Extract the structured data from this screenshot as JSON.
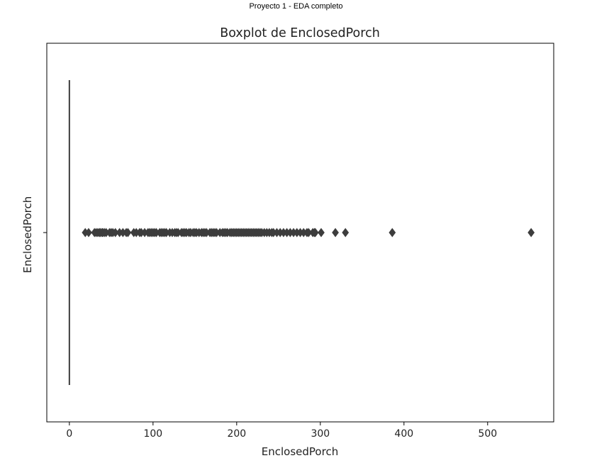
{
  "page": {
    "header": "Proyecto 1 - EDA completo"
  },
  "chart_data": {
    "type": "boxplot",
    "orientation": "horizontal",
    "title": "Boxplot de EnclosedPorch",
    "xlabel": "EnclosedPorch",
    "ylabel": "EnclosedPorch",
    "xlim": [
      -27,
      579
    ],
    "xticks": [
      0,
      100,
      200,
      300,
      400,
      500
    ],
    "grid": false,
    "box": {
      "min": 0,
      "q1": 0,
      "median": 0,
      "q3": 0,
      "max": 0
    },
    "outliers": [
      19,
      23,
      30,
      32,
      34,
      36,
      37,
      39,
      40,
      42,
      44,
      48,
      50,
      52,
      55,
      60,
      64,
      68,
      70,
      77,
      80,
      84,
      86,
      90,
      94,
      96,
      98,
      100,
      102,
      104,
      108,
      110,
      112,
      114,
      116,
      120,
      123,
      126,
      128,
      130,
      134,
      136,
      138,
      140,
      143,
      145,
      148,
      150,
      152,
      155,
      158,
      160,
      162,
      164,
      168,
      170,
      172,
      174,
      176,
      180,
      183,
      185,
      187,
      189,
      192,
      194,
      196,
      198,
      200,
      202,
      204,
      206,
      208,
      210,
      212,
      214,
      216,
      218,
      220,
      222,
      224,
      226,
      228,
      230,
      233,
      236,
      239,
      242,
      244,
      248,
      252,
      256,
      260,
      264,
      268,
      272,
      276,
      280,
      284,
      286,
      291,
      293,
      294,
      301,
      318,
      330,
      386,
      552
    ],
    "colors": {
      "marker": "#3d3d3d",
      "whisker": "#3d3d3d",
      "frame": "#000000"
    }
  }
}
